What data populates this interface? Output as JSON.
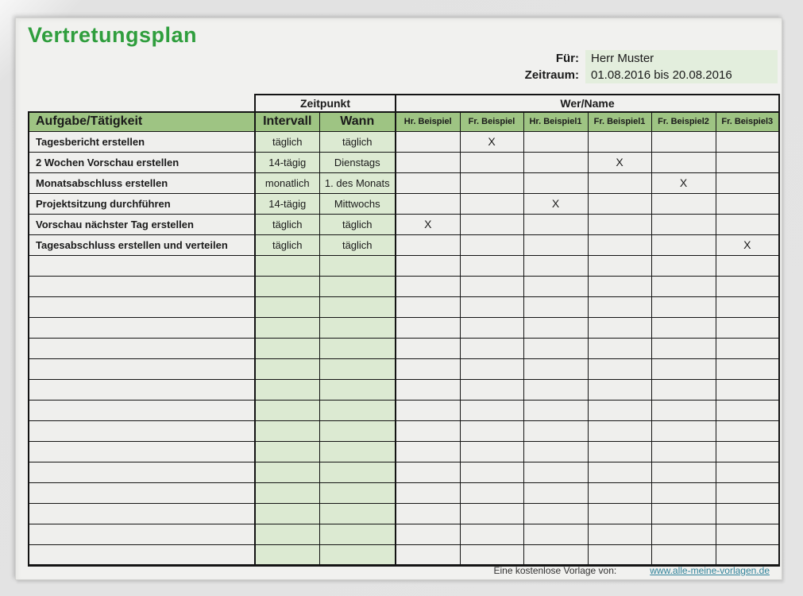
{
  "page": {
    "title": "Vertretungsplan",
    "meta": {
      "fuer_label": "Für:",
      "fuer_value": "Herr Muster",
      "zeitraum_label": "Zeitraum:",
      "zeitraum_value": "01.08.2016 bis 20.08.2016"
    },
    "table": {
      "group_headers": {
        "zeitpunkt": "Zeitpunkt",
        "wer_name": "Wer/Name"
      },
      "columns": {
        "task": "Aufgabe/Tätigkeit",
        "intervall": "Intervall",
        "wann": "Wann",
        "persons": [
          "Hr. Beispiel",
          "Fr. Beispiel",
          "Hr. Beispiel1",
          "Fr. Beispiel1",
          "Fr. Beispiel2",
          "Fr. Beispiel3"
        ]
      },
      "mark_symbol": "X",
      "rows": [
        {
          "task": "Tagesbericht erstellen",
          "intervall": "täglich",
          "wann": "täglich",
          "marks": [
            "",
            "X",
            "",
            "",
            "",
            ""
          ]
        },
        {
          "task": "2 Wochen Vorschau erstellen",
          "intervall": "14-tägig",
          "wann": "Dienstags",
          "marks": [
            "",
            "",
            "",
            "X",
            "",
            ""
          ]
        },
        {
          "task": "Monatsabschluss erstellen",
          "intervall": "monatlich",
          "wann": "1. des Monats",
          "marks": [
            "",
            "",
            "",
            "",
            "X",
            ""
          ]
        },
        {
          "task": "Projektsitzung durchführen",
          "intervall": "14-tägig",
          "wann": "Mittwochs",
          "marks": [
            "",
            "",
            "X",
            "",
            "",
            ""
          ]
        },
        {
          "task": "Vorschau nächster Tag erstellen",
          "intervall": "täglich",
          "wann": "täglich",
          "marks": [
            "X",
            "",
            "",
            "",
            "",
            ""
          ]
        },
        {
          "task": "Tagesabschluss erstellen und verteilen",
          "intervall": "täglich",
          "wann": "täglich",
          "marks": [
            "",
            "",
            "",
            "",
            "",
            "X"
          ]
        }
      ],
      "empty_row_count": 15
    },
    "footer": {
      "credit": "Eine kostenlose Vorlage von:",
      "link": "www.alle-meine-vorlagen.de"
    },
    "colors": {
      "title_green": "#2f9e3d",
      "header_green": "#9ec483",
      "light_green": "#dcead2",
      "meta_green": "#e3eedd",
      "link_teal": "#31849b"
    }
  }
}
